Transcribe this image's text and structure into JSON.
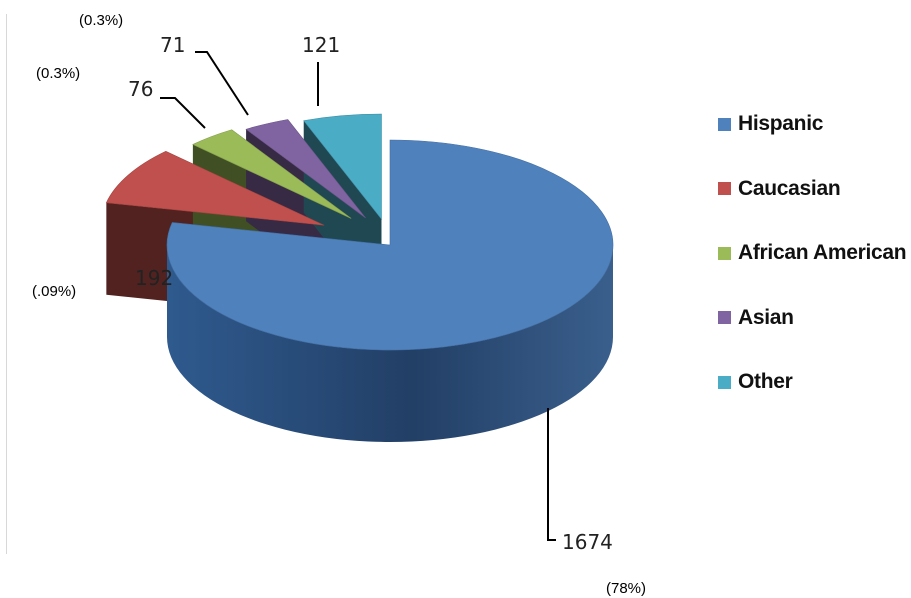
{
  "chart_data": {
    "type": "pie",
    "categories": [
      "Hispanic",
      "Caucasian",
      "African American",
      "Asian",
      "Other"
    ],
    "values": [
      1674,
      192,
      76,
      71,
      121
    ],
    "data_labels": [
      "1674",
      "192",
      "76",
      "71",
      "121"
    ],
    "colors": [
      "#4F81BD",
      "#C0504D",
      "#9BBB59",
      "#8064A2",
      "#4BACC6"
    ],
    "legend": {
      "position": "right",
      "entries": [
        "Hispanic",
        "Caucasian",
        "African American",
        "Asian",
        "Other"
      ]
    },
    "style": "3d-exploded"
  },
  "annotations": {
    "top_a": "(0.3%)",
    "top_b": "(0.3%)",
    "left": "(.09%)",
    "bottom": "(78%)"
  }
}
